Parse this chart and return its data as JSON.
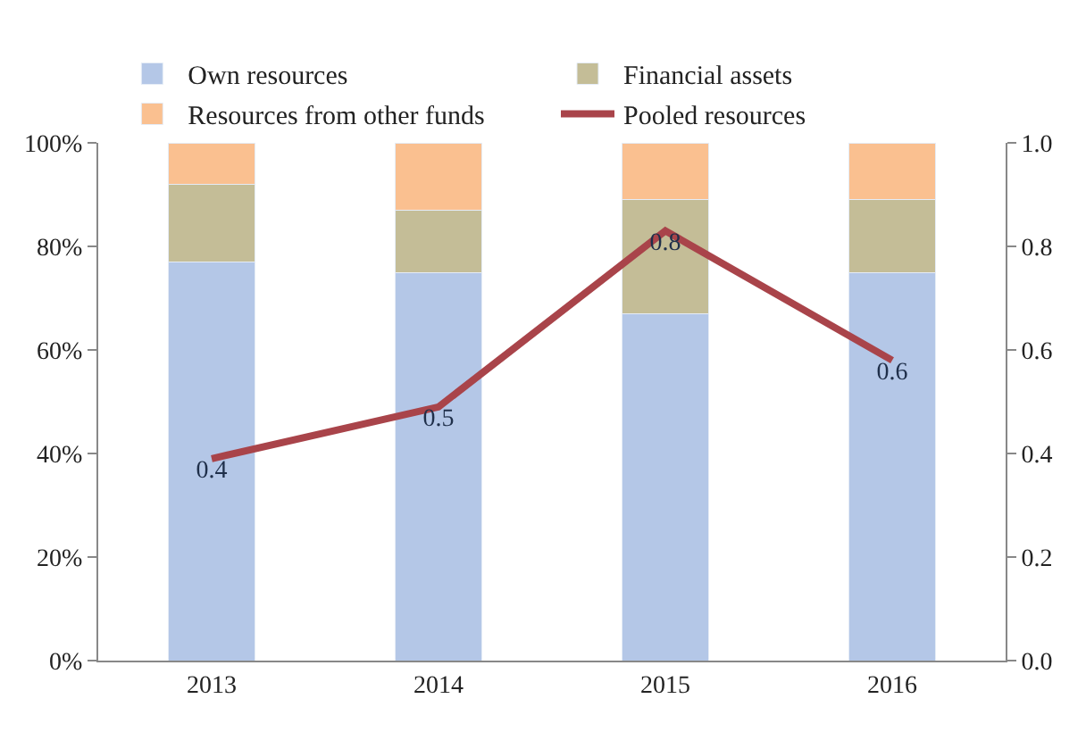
{
  "chart_data": {
    "type": "bar",
    "stacked": true,
    "categories": [
      "2013",
      "2014",
      "2015",
      "2016"
    ],
    "series": [
      {
        "name": "Own resources",
        "color": "#b4c7e7",
        "values": [
          77,
          75,
          67,
          75
        ]
      },
      {
        "name": "Financial assets",
        "color": "#c4bd97",
        "values": [
          15,
          12,
          22,
          14
        ]
      },
      {
        "name": "Resources from other funds",
        "color": "#fac090",
        "values": [
          8,
          13,
          11,
          11
        ]
      },
      {
        "name": "Pooled resources",
        "type": "line",
        "axis": "y2",
        "color": "#a9444a",
        "values": [
          0.39,
          0.49,
          0.83,
          0.58
        ],
        "value_labels": [
          "0.4",
          "0.5",
          "0.8",
          "0.6"
        ],
        "marker": "none",
        "line_style": "solid"
      }
    ],
    "ylim": [
      0,
      100
    ],
    "yticks": [
      {
        "value": 0,
        "label": "0%"
      },
      {
        "value": 20,
        "label": "20%"
      },
      {
        "value": 40,
        "label": "40%"
      },
      {
        "value": 60,
        "label": "60%"
      },
      {
        "value": 80,
        "label": "80%"
      },
      {
        "value": 100,
        "label": "100%"
      }
    ],
    "y2lim": [
      0,
      1
    ],
    "y2ticks": [
      {
        "value": 0,
        "label": "0.0"
      },
      {
        "value": 0.2,
        "label": "0.2"
      },
      {
        "value": 0.4,
        "label": "0.4"
      },
      {
        "value": 0.6,
        "label": "0.6"
      },
      {
        "value": 0.8,
        "label": "0.8"
      },
      {
        "value": 1,
        "label": "1.0"
      }
    ],
    "legend": "top"
  }
}
